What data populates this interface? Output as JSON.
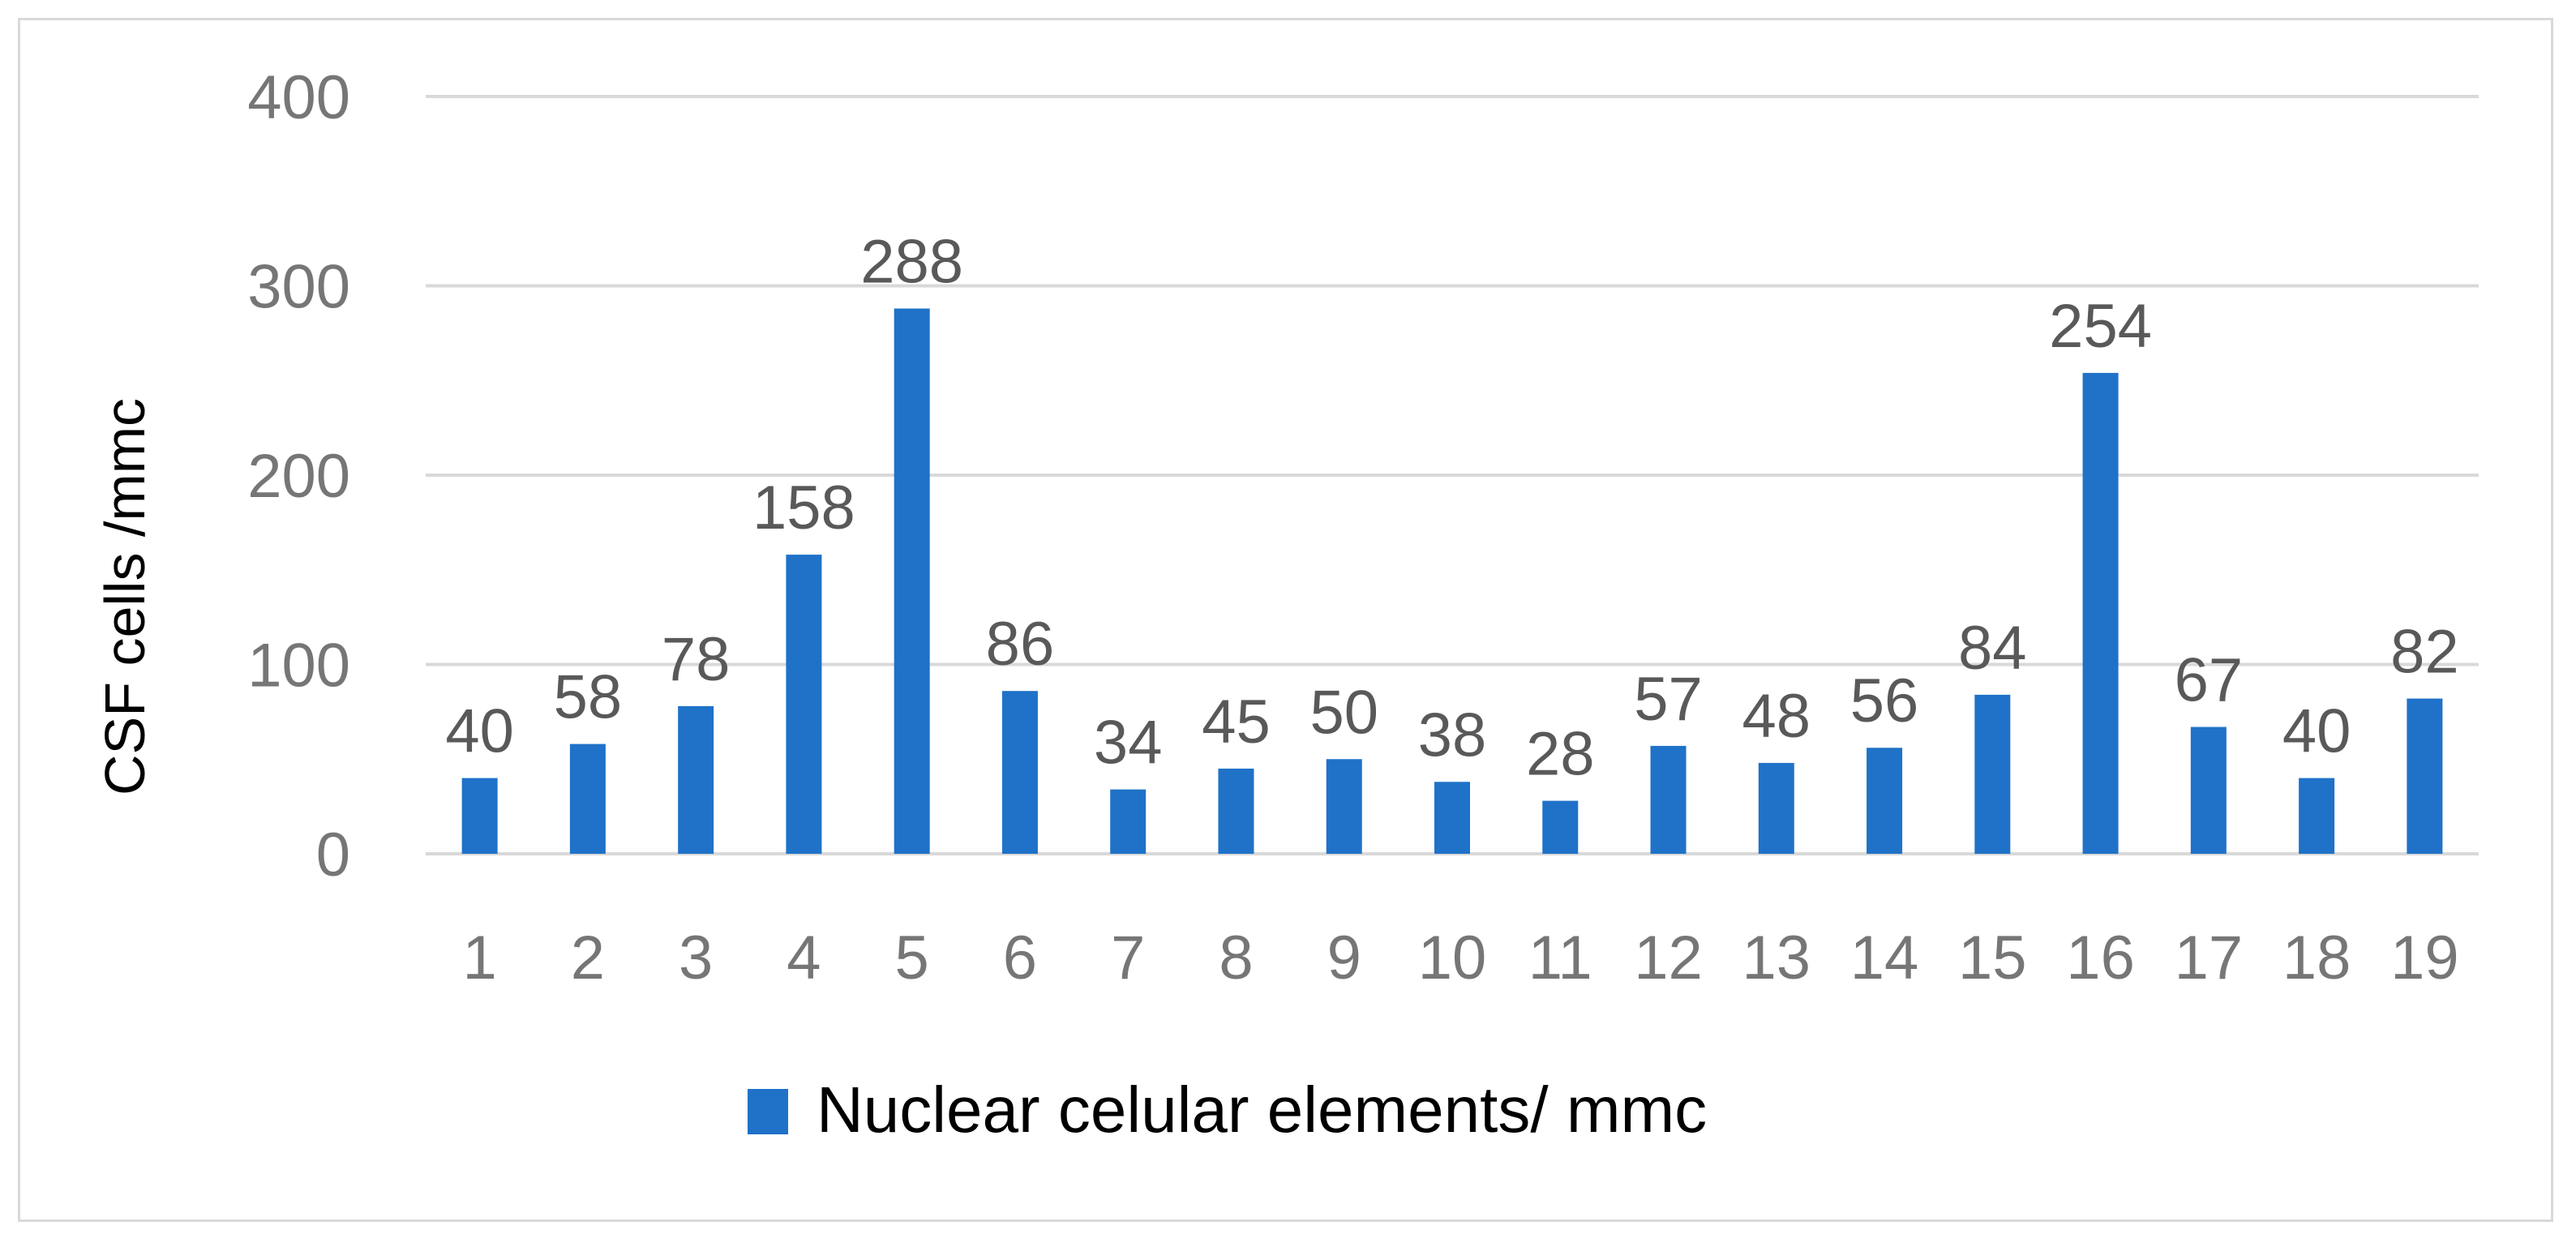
{
  "chart_data": {
    "type": "bar",
    "title": "",
    "xlabel": "",
    "ylabel": "CSF cells /mmc",
    "ylim": [
      0,
      400
    ],
    "yticks": [
      0,
      100,
      200,
      300,
      400
    ],
    "grid": true,
    "legend_position": "bottom",
    "categories": [
      "1",
      "2",
      "3",
      "4",
      "5",
      "6",
      "7",
      "8",
      "9",
      "10",
      "11",
      "12",
      "13",
      "14",
      "15",
      "16",
      "17",
      "18",
      "19"
    ],
    "series": [
      {
        "name": "Nuclear celular elements/ mmc",
        "color": "#1f72c8",
        "values": [
          40,
          58,
          78,
          158,
          288,
          86,
          34,
          45,
          50,
          38,
          28,
          57,
          48,
          56,
          84,
          254,
          67,
          40,
          82
        ]
      }
    ],
    "colors": {
      "gridline": "#d9d9d9",
      "tick_text": "#767676",
      "data_label_text": "#595959"
    }
  }
}
